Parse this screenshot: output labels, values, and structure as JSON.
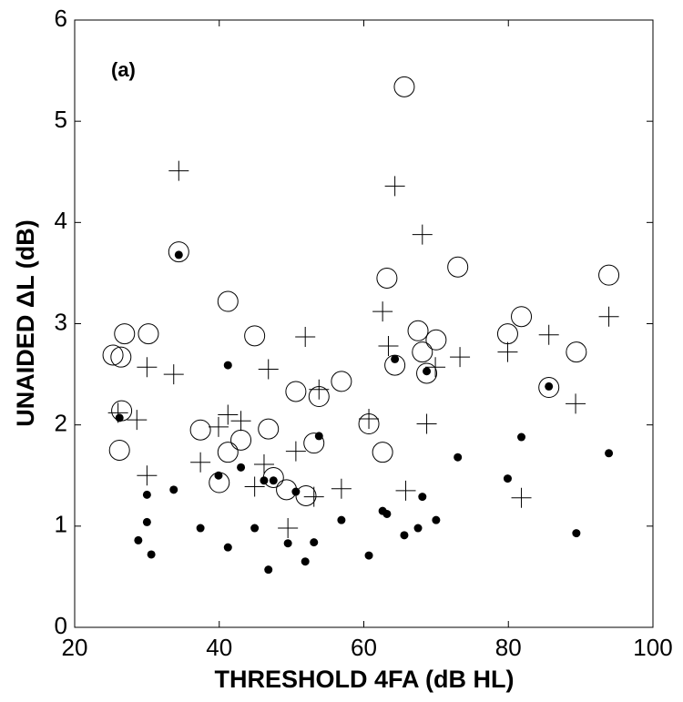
{
  "chart_data": {
    "type": "scatter",
    "annotation": "(a)",
    "xlabel": "THRESHOLD 4FA (dB HL)",
    "ylabel": "UNAIDED ΔL (dB)",
    "xlim": [
      20,
      100
    ],
    "ylim": [
      0,
      6
    ],
    "xticks": [
      20,
      40,
      60,
      80,
      100
    ],
    "yticks": [
      0,
      1,
      2,
      3,
      4,
      5,
      6
    ],
    "grid": false,
    "series": [
      {
        "marker": "circle-open",
        "color": "#000000",
        "x": [
          26.2,
          25.3,
          26.4,
          26.5,
          26.9,
          30.2,
          34.4,
          37.4,
          40.0,
          41.2,
          41.2,
          43.0,
          44.9,
          46.8,
          47.5,
          49.3,
          50.6,
          52.0,
          53.1,
          53.8,
          56.9,
          60.7,
          62.6,
          63.2,
          64.3,
          65.6,
          67.5,
          68.1,
          68.7,
          70.0,
          73.0,
          79.9,
          81.8,
          85.6,
          89.4,
          93.9
        ],
        "y": [
          1.75,
          2.69,
          2.67,
          2.14,
          2.9,
          2.9,
          3.71,
          1.95,
          1.43,
          1.73,
          3.22,
          1.85,
          2.88,
          1.96,
          1.48,
          1.36,
          2.33,
          1.3,
          1.82,
          2.28,
          2.43,
          2.01,
          1.73,
          3.45,
          2.59,
          5.34,
          2.93,
          2.72,
          2.51,
          2.84,
          3.56,
          2.9,
          3.07,
          2.37,
          2.72,
          3.48
        ]
      },
      {
        "marker": "plus",
        "color": "#000000",
        "x": [
          26.0,
          28.6,
          30.0,
          30.0,
          33.7,
          34.4,
          37.4,
          39.9,
          41.2,
          43.0,
          44.9,
          46.8,
          46.2,
          49.5,
          50.6,
          51.9,
          53.1,
          53.8,
          56.9,
          60.7,
          62.6,
          63.4,
          64.3,
          65.8,
          68.1,
          68.7,
          69.9,
          73.3,
          79.9,
          81.8,
          85.6,
          89.3,
          93.9
        ],
        "y": [
          2.12,
          2.05,
          1.5,
          2.57,
          2.5,
          4.51,
          1.63,
          1.98,
          2.1,
          2.04,
          1.39,
          2.55,
          1.61,
          0.98,
          1.74,
          2.87,
          1.29,
          2.35,
          1.37,
          2.06,
          3.12,
          2.78,
          4.36,
          1.35,
          3.88,
          2.01,
          2.57,
          2.67,
          2.72,
          1.28,
          2.89,
          2.21,
          3.07
        ]
      },
      {
        "marker": "dot",
        "color": "#000000",
        "x": [
          26.2,
          28.8,
          30.0,
          30.0,
          30.6,
          33.7,
          34.4,
          37.4,
          39.9,
          41.2,
          41.2,
          43.0,
          44.9,
          46.2,
          46.8,
          47.5,
          49.5,
          50.6,
          51.9,
          53.1,
          53.8,
          56.9,
          60.7,
          62.6,
          63.2,
          64.3,
          65.6,
          67.5,
          68.1,
          68.7,
          70.0,
          73.0,
          79.9,
          81.8,
          85.6,
          89.4,
          93.9
        ],
        "y": [
          2.07,
          0.86,
          1.31,
          1.04,
          0.72,
          1.36,
          3.68,
          0.98,
          1.5,
          2.59,
          0.79,
          1.58,
          0.98,
          1.45,
          0.57,
          1.45,
          0.83,
          1.34,
          0.65,
          0.84,
          1.89,
          1.06,
          0.71,
          1.15,
          1.12,
          2.65,
          0.91,
          0.98,
          1.29,
          2.53,
          1.06,
          1.68,
          1.47,
          1.88,
          2.38,
          0.93,
          1.72
        ]
      }
    ]
  }
}
